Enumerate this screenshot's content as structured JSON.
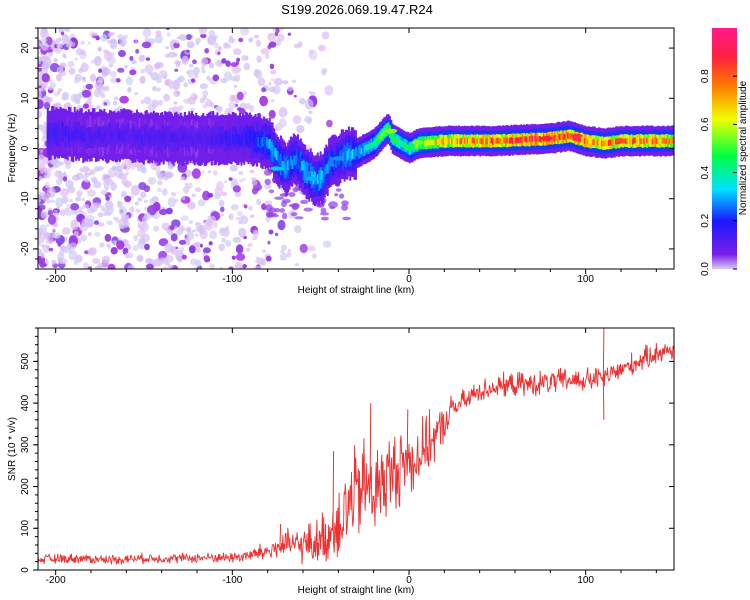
{
  "title": "S199.2026.069.19.47.R24",
  "chart_data": [
    {
      "type": "heatmap",
      "title": "S199.2026.069.19.47.R24",
      "xlabel": "Height of straight line (km)",
      "ylabel": "Frequency (Hz)",
      "xlim": [
        -210,
        150
      ],
      "ylim": [
        -24,
        24
      ],
      "xticks": [
        -200,
        -100,
        0,
        100
      ],
      "yticks": [
        -20,
        -10,
        0,
        10,
        20
      ],
      "colorbar": {
        "label": "Normalized spectral amplitude",
        "range": [
          0.0,
          1.0
        ],
        "ticks": [
          0.0,
          0.2,
          0.4,
          0.6,
          0.8
        ],
        "colormap": [
          "#ddc8f5",
          "#7a1fe8",
          "#1a1aff",
          "#00e0ff",
          "#00ff40",
          "#f0ff00",
          "#ff7a00",
          "#ff2040",
          "#ff1a8c"
        ]
      },
      "ridge": {
        "x": [
          -200,
          -180,
          -160,
          -140,
          -120,
          -100,
          -90,
          -80,
          -75,
          -70,
          -65,
          -60,
          -55,
          -50,
          -45,
          -40,
          -35,
          -30,
          -25,
          -20,
          -15,
          -12,
          -10,
          -5,
          0,
          5,
          20,
          50,
          80,
          90,
          100,
          110,
          120,
          150
        ],
        "frequency": [
          3,
          2.5,
          2.5,
          2,
          2,
          2,
          2,
          1,
          -2,
          -4,
          -2,
          -4,
          -6,
          -6,
          -3,
          -2,
          -1,
          -1,
          0,
          1,
          3,
          4,
          2,
          1,
          0,
          1,
          1.5,
          1.5,
          2,
          2.5,
          1.5,
          1,
          1.5,
          1.5
        ],
        "amplitude": [
          0.15,
          0.12,
          0.12,
          0.13,
          0.12,
          0.15,
          0.18,
          0.28,
          0.3,
          0.3,
          0.25,
          0.3,
          0.3,
          0.32,
          0.25,
          0.25,
          0.3,
          0.3,
          0.35,
          0.4,
          0.5,
          0.55,
          0.45,
          0.45,
          0.4,
          0.55,
          0.7,
          0.8,
          0.9,
          0.85,
          0.8,
          0.75,
          0.8,
          0.7
        ]
      }
    },
    {
      "type": "line",
      "xlabel": "Height of straight line (km)",
      "ylabel": "SNR (10 * v/v)",
      "xlim": [
        -210,
        150
      ],
      "ylim": [
        0,
        580
      ],
      "xticks": [
        -200,
        -100,
        0,
        100
      ],
      "yticks": [
        0,
        100,
        200,
        300,
        400,
        500
      ],
      "color": "#ee3030",
      "series": [
        {
          "name": "SNR",
          "x": [
            -210,
            -190,
            -170,
            -150,
            -130,
            -110,
            -100,
            -90,
            -80,
            -70,
            -60,
            -50,
            -45,
            -40,
            -35,
            -30,
            -25,
            -20,
            -15,
            -10,
            -5,
            0,
            5,
            10,
            15,
            20,
            25,
            30,
            40,
            50,
            60,
            70,
            80,
            90,
            100,
            110,
            120,
            130,
            140,
            150
          ],
          "values": [
            25,
            28,
            25,
            28,
            28,
            30,
            30,
            35,
            45,
            60,
            60,
            70,
            90,
            120,
            150,
            180,
            200,
            190,
            210,
            230,
            250,
            260,
            270,
            300,
            320,
            350,
            390,
            400,
            430,
            440,
            445,
            445,
            450,
            455,
            455,
            460,
            480,
            500,
            520,
            530
          ],
          "noise": [
            12,
            12,
            12,
            12,
            12,
            12,
            14,
            18,
            25,
            35,
            45,
            60,
            75,
            100,
            110,
            120,
            120,
            115,
            110,
            100,
            95,
            90,
            80,
            70,
            60,
            45,
            35,
            30,
            28,
            28,
            30,
            30,
            30,
            30,
            30,
            28,
            28,
            28,
            28,
            28
          ],
          "spikes": [
            {
              "x": -73,
              "value": 110
            },
            {
              "x": -43,
              "value": 285
            },
            {
              "x": -22,
              "value": 400
            },
            {
              "x": -1,
              "value": 385
            },
            {
              "x": 110,
              "value": 580
            },
            {
              "x": 110,
              "value": 360
            }
          ]
        }
      ]
    }
  ]
}
